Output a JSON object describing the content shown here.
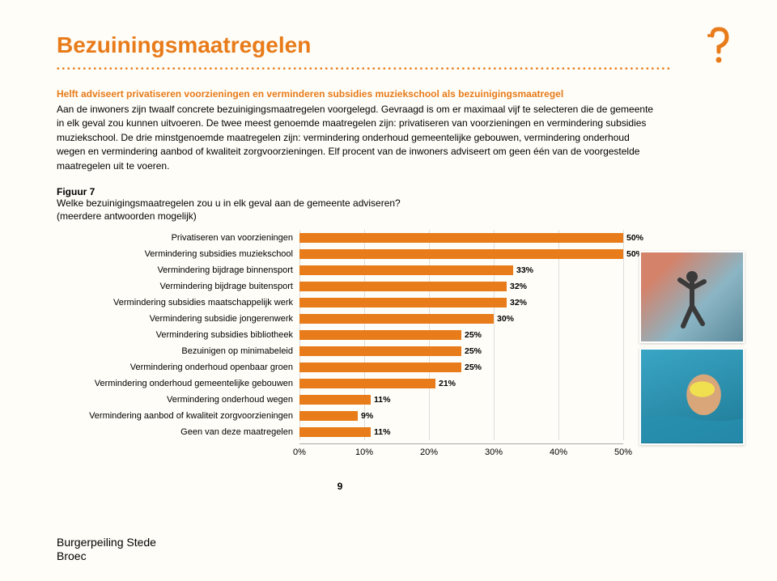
{
  "title": "Bezuiningsmaatregelen",
  "subtitle": "Helft adviseert privatiseren voorzieningen en verminderen subsidies muziekschool als bezuinigingsmaatregel",
  "body": "Aan de inwoners zijn twaalf concrete bezuinigingsmaatregelen voorgelegd. Gevraagd is om er maximaal vijf te selecteren die de gemeente in elk geval zou kunnen uitvoeren. De twee meest genoemde maatregelen zijn: privatiseren van voorzieningen en vermindering subsidies muziekschool. De drie minstgenoemde maatregelen zijn: vermindering onderhoud gemeentelijke gebouwen, vermindering onderhoud wegen en vermindering aanbod of kwaliteit zorgvoorzieningen. Elf procent van de inwoners adviseert om geen één van de voorgestelde maatregelen uit te voeren.",
  "figure_label": "Figuur 7",
  "figure_question": "Welke bezuinigingsmaatregelen zou u in elk geval aan de gemeente adviseren?",
  "figure_note": "(meerdere antwoorden mogelijk)",
  "chart": {
    "type": "bar",
    "bar_color": "#e87b1a",
    "grid_color": "#dddddd",
    "background": "#fefdf7",
    "xlim": [
      0,
      50
    ],
    "xtick_step": 10,
    "label_fontsize": 11,
    "value_fontsize": 10.5,
    "bars": [
      {
        "label": "Privatiseren van voorzieningen",
        "value": 50
      },
      {
        "label": "Vermindering subsidies muziekschool",
        "value": 50
      },
      {
        "label": "Vermindering bijdrage binnensport",
        "value": 33
      },
      {
        "label": "Vermindering bijdrage buitensport",
        "value": 32
      },
      {
        "label": "Vermindering subsidies maatschappelijk werk",
        "value": 32
      },
      {
        "label": "Vermindering subsidie jongerenwerk",
        "value": 30
      },
      {
        "label": "Vermindering subsidies bibliotheek",
        "value": 25
      },
      {
        "label": "Bezuinigen op minimabeleid",
        "value": 25
      },
      {
        "label": "Vermindering onderhoud openbaar groen",
        "value": 25
      },
      {
        "label": "Vermindering onderhoud gemeentelijke gebouwen",
        "value": 21
      },
      {
        "label": "Vermindering onderhoud wegen",
        "value": 11
      },
      {
        "label": "Vermindering aanbod of kwaliteit zorgvoorzieningen",
        "value": 9
      },
      {
        "label": "Geen van deze maatregelen",
        "value": 11
      }
    ],
    "xticks": [
      "0%",
      "10%",
      "20%",
      "30%",
      "40%",
      "50%"
    ]
  },
  "page_number": "9",
  "footer_line1": "Burgerpeiling Stede",
  "footer_line2": "Broec"
}
